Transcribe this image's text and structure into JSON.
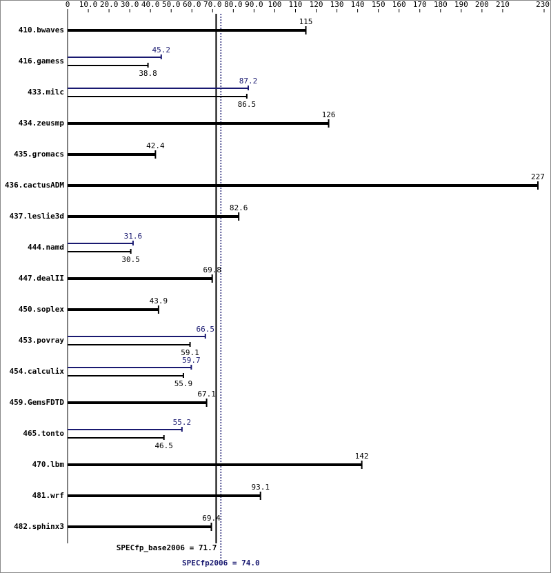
{
  "chart_data": {
    "type": "bar",
    "categories": [
      "410.bwaves",
      "416.gamess",
      "433.milc",
      "434.zeusmp",
      "435.gromacs",
      "436.cactusADM",
      "437.leslie3d",
      "444.namd",
      "447.dealII",
      "450.soplex",
      "453.povray",
      "454.calculix",
      "459.GemsFDTD",
      "465.tonto",
      "470.lbm",
      "481.wrf",
      "482.sphinx3"
    ],
    "series": [
      {
        "color": "#000000",
        "values": [
          115,
          38.8,
          86.5,
          126,
          42.4,
          227,
          82.6,
          30.5,
          69.8,
          43.9,
          59.1,
          55.9,
          67.1,
          46.5,
          142,
          93.1,
          69.4
        ]
      },
      {
        "color": "#191970",
        "values": [
          null,
          45.2,
          87.2,
          null,
          null,
          null,
          null,
          31.6,
          null,
          null,
          66.5,
          59.7,
          null,
          55.2,
          null,
          null,
          null
        ]
      }
    ],
    "xlim": [
      0,
      230
    ],
    "xticks": [
      0,
      {
        "value": 10,
        "label": "10.0"
      },
      {
        "value": 20,
        "label": "20.0"
      },
      {
        "value": 30,
        "label": "30.0"
      },
      {
        "value": 40,
        "label": "40.0"
      },
      {
        "value": 50,
        "label": "50.0"
      },
      {
        "value": 60,
        "label": "60.0"
      },
      {
        "value": 70,
        "label": "70.0"
      },
      {
        "value": 80,
        "label": "80.0"
      },
      {
        "value": 90,
        "label": "90.0"
      },
      100,
      110,
      120,
      130,
      140,
      150,
      160,
      170,
      180,
      190,
      200,
      210,
      230
    ],
    "reference_lines": [
      {
        "label": "SPECfp_base2006 = 71.7",
        "value": 71.7,
        "color": "#000000",
        "style": "solid"
      },
      {
        "label": "SPECfp2006 = 74.0",
        "value": 74.0,
        "color": "#191970",
        "style": "dotted"
      }
    ]
  }
}
